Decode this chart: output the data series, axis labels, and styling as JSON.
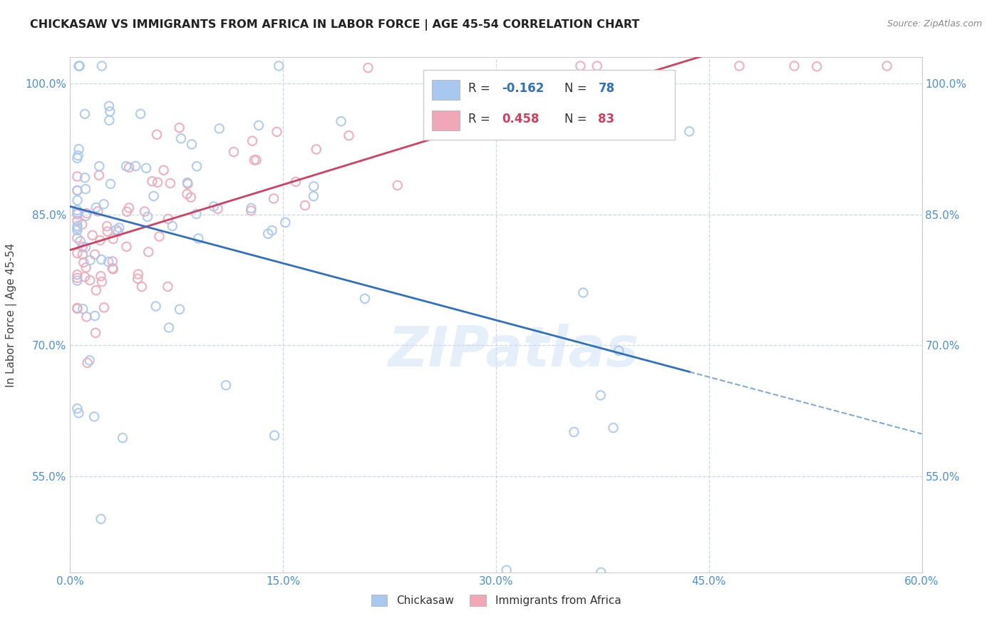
{
  "title": "CHICKASAW VS IMMIGRANTS FROM AFRICA IN LABOR FORCE | AGE 45-54 CORRELATION CHART",
  "source": "Source: ZipAtlas.com",
  "ylabel": "In Labor Force | Age 45-54",
  "x_min": 0.0,
  "x_max": 0.6,
  "y_min": 0.44,
  "y_max": 1.03,
  "y_ticks": [
    0.55,
    0.7,
    0.85,
    1.0
  ],
  "y_tick_labels": [
    "55.0%",
    "70.0%",
    "85.0%",
    "100.0%"
  ],
  "x_ticks": [
    0.0,
    0.15,
    0.3,
    0.45,
    0.6
  ],
  "legend_label1": "Chickasaw",
  "legend_label2": "Immigrants from Africa",
  "R1": -0.162,
  "N1": 78,
  "R2": 0.458,
  "N2": 83,
  "color1": "#a8c8f0",
  "color2": "#f0a8b8",
  "line1_color": "#3070c0",
  "line2_color": "#d04060",
  "watermark": "ZIPatlas",
  "background_color": "#ffffff",
  "grid_color": "#c8d8e8",
  "tick_label_color": "#4a90d9",
  "title_color": "#222222",
  "source_color": "#888888",
  "ylabel_color": "#444444"
}
